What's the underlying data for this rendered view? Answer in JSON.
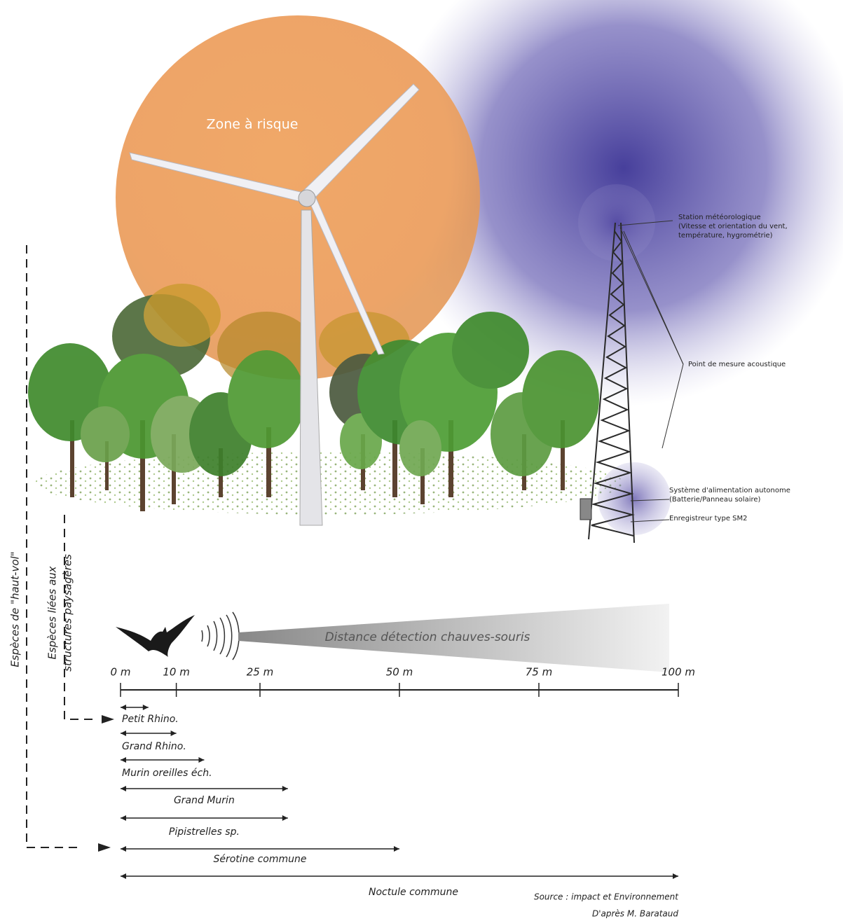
{
  "illustration": {
    "zone_label": "Zone à risque",
    "annotations": [
      {
        "lines": [
          "Station météorologique",
          "(Vitesse et orientation du vent,",
          "température, hygrométrie)"
        ]
      },
      {
        "lines": [
          "Point de mesure acoustique"
        ]
      },
      {
        "lines": [
          "Système d'alimentation autonome",
          "(Batterie/Panneau solaire)"
        ]
      },
      {
        "lines": [
          "Enregistreur type SM2"
        ]
      }
    ]
  },
  "groups": {
    "high_flight": "Espèces de \"haut-vol\"",
    "landscape": [
      "Espèces liées aux",
      "structures paysagères"
    ]
  },
  "detection": {
    "label": "Distance détection chauves-souris",
    "xlim": [
      0,
      100
    ],
    "ticks": [
      {
        "value": 0,
        "label": "0 m"
      },
      {
        "value": 10,
        "label": "10 m"
      },
      {
        "value": 25,
        "label": "25 m"
      },
      {
        "value": 50,
        "label": "50 m"
      },
      {
        "value": 75,
        "label": "75 m"
      },
      {
        "value": 100,
        "label": "100 m"
      }
    ],
    "species": [
      {
        "name": "Petit Rhino.",
        "range": 5
      },
      {
        "name": "Grand Rhino.",
        "range": 10
      },
      {
        "name": "Murin oreilles éch.",
        "range": 15
      },
      {
        "name": "Grand Murin",
        "range": 30
      },
      {
        "name": "Pipistrelles sp.",
        "range": 30
      },
      {
        "name": "Sérotine commune",
        "range": 50
      },
      {
        "name": "Noctule commune",
        "range": 100
      }
    ]
  },
  "source": [
    "Source : impact et Environnement",
    "D'après M. Barataud"
  ]
}
